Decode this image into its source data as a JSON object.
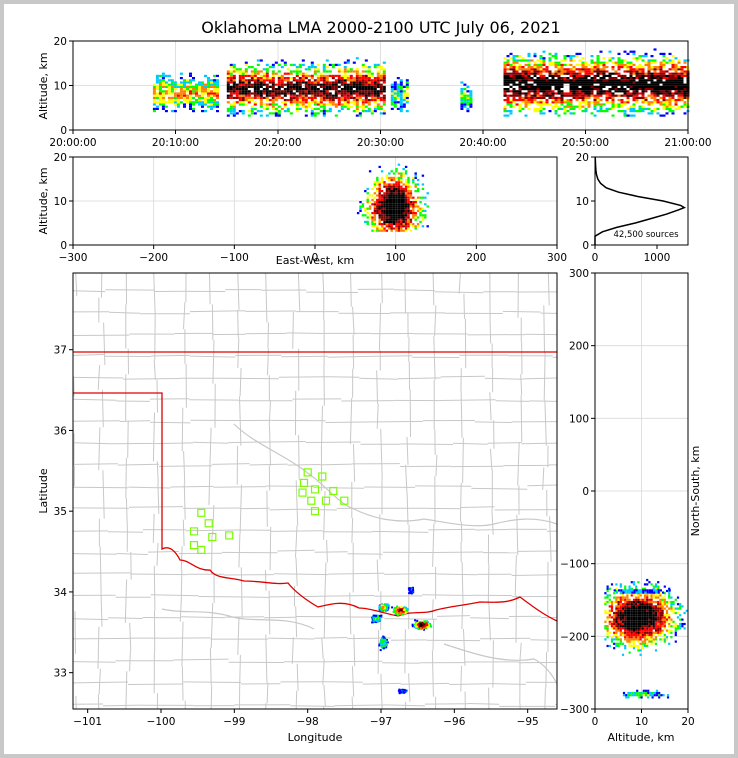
{
  "title": "Oklahoma LMA 2000-2100 UTC July 06, 2021",
  "colors": {
    "background": "#ffffff",
    "frame": "#c8c8c8",
    "grid": "#d9d9d9",
    "county": "#c8c8c8",
    "border": "#e00000",
    "station": "#7cfc00",
    "histogram": "#000000"
  },
  "density_palette": [
    "#0000ff",
    "#00c8ff",
    "#00ff00",
    "#ffff00",
    "#ff8000",
    "#ff0000",
    "#800000",
    "#000000"
  ],
  "chart_data": [
    {
      "id": "time-altitude",
      "type": "heatmap",
      "xlabel": "",
      "ylabel": "Altitude, km",
      "xticks": [
        "20:00:00",
        "20:10:00",
        "20:20:00",
        "20:30:00",
        "20:40:00",
        "20:50:00",
        "21:00:00"
      ],
      "xlim_minutes": [
        0,
        60
      ],
      "ylim": [
        0,
        20
      ],
      "yticks": [
        0,
        10,
        20
      ],
      "grid": true,
      "activity_windows_minutes": [
        {
          "start": 7.8,
          "end": 14.2,
          "alt_low": 4,
          "alt_high": 14,
          "intensity": 0.5
        },
        {
          "start": 15.0,
          "end": 30.5,
          "alt_low": 3,
          "alt_high": 17,
          "intensity": 0.9
        },
        {
          "start": 31.0,
          "end": 32.5,
          "alt_low": 4,
          "alt_high": 13,
          "intensity": 0.3
        },
        {
          "start": 37.8,
          "end": 38.8,
          "alt_low": 4,
          "alt_high": 12,
          "intensity": 0.3
        },
        {
          "start": 42.0,
          "end": 60.0,
          "alt_low": 3,
          "alt_high": 19,
          "intensity": 1.0
        }
      ]
    },
    {
      "id": "ew-altitude",
      "type": "heatmap",
      "xlabel": "East-West, km",
      "ylabel": "Altitude, km",
      "xticks": [
        -300,
        -200,
        -100,
        0,
        100,
        200,
        300
      ],
      "yticks": [
        0,
        10,
        20
      ],
      "xlim": [
        -300,
        300
      ],
      "ylim": [
        0,
        20
      ],
      "grid": true,
      "clusters": [
        {
          "x_center": 97,
          "x_spread": 20,
          "alt_low": 3,
          "alt_high": 20,
          "core_alt": 8.5,
          "intensity": 1.0
        }
      ]
    },
    {
      "id": "altitude-histogram",
      "type": "line",
      "annotation": "42,500 sources",
      "xticks": [
        0,
        1000
      ],
      "yticks": [
        0,
        10,
        20
      ],
      "xlim": [
        0,
        1500
      ],
      "ylim": [
        0,
        20
      ],
      "profile": {
        "altitude": [
          0,
          2,
          3,
          4,
          5,
          6,
          7,
          8,
          8.5,
          9,
          10,
          11,
          12,
          13,
          14,
          15,
          16,
          17,
          18,
          19,
          20
        ],
        "count": [
          0,
          0,
          120,
          350,
          650,
          900,
          1150,
          1350,
          1440,
          1380,
          1100,
          700,
          380,
          180,
          90,
          45,
          25,
          15,
          10,
          6,
          3
        ]
      }
    },
    {
      "id": "plan-view-map",
      "type": "scatter",
      "xlabel": "Longitude",
      "ylabel": "Latitude",
      "xticks": [
        -101,
        -100,
        -99,
        -98,
        -97,
        -96,
        -95
      ],
      "yticks": [
        33,
        34,
        35,
        36,
        37
      ],
      "xlim": [
        -101.2,
        -94.6
      ],
      "ylim": [
        32.55,
        37.95
      ],
      "grid": true,
      "stations": [
        [
          -99.45,
          34.98
        ],
        [
          -99.35,
          34.85
        ],
        [
          -99.55,
          34.75
        ],
        [
          -99.3,
          34.68
        ],
        [
          -99.55,
          34.58
        ],
        [
          -99.45,
          34.52
        ],
        [
          -99.07,
          34.7
        ],
        [
          -98.0,
          35.48
        ],
        [
          -98.05,
          35.35
        ],
        [
          -97.8,
          35.43
        ],
        [
          -97.9,
          35.27
        ],
        [
          -98.07,
          35.23
        ],
        [
          -97.65,
          35.25
        ],
        [
          -97.95,
          35.13
        ],
        [
          -97.75,
          35.13
        ],
        [
          -97.5,
          35.13
        ],
        [
          -97.9,
          35.0
        ]
      ],
      "source_clusters": [
        {
          "lon": -97.07,
          "lat": 33.68,
          "sx": 0.06,
          "sy": 0.04,
          "weight": 0.35
        },
        {
          "lon": -96.98,
          "lat": 33.38,
          "sx": 0.05,
          "sy": 0.07,
          "weight": 0.3
        },
        {
          "lon": -96.97,
          "lat": 33.82,
          "sx": 0.06,
          "sy": 0.04,
          "weight": 0.5
        },
        {
          "lon": -96.75,
          "lat": 33.78,
          "sx": 0.09,
          "sy": 0.05,
          "weight": 0.8
        },
        {
          "lon": -96.45,
          "lat": 33.6,
          "sx": 0.1,
          "sy": 0.05,
          "weight": 0.9
        },
        {
          "lon": -96.6,
          "lat": 34.03,
          "sx": 0.03,
          "sy": 0.03,
          "weight": 0.1
        },
        {
          "lon": -96.72,
          "lat": 32.78,
          "sx": 0.05,
          "sy": 0.02,
          "weight": 0.15
        }
      ]
    },
    {
      "id": "altitude-ns",
      "type": "heatmap",
      "xlabel": "Altitude, km",
      "ylabel": "North-South, km",
      "xticks": [
        0,
        10,
        20
      ],
      "yticks": [
        -300,
        -200,
        -100,
        0,
        100,
        200,
        300
      ],
      "xlim": [
        0,
        20
      ],
      "ylim": [
        -300,
        300
      ],
      "grid": true,
      "clusters": [
        {
          "ns_center": -175,
          "ns_spread": 25,
          "alt_low": 2,
          "alt_high": 20,
          "core_alt": 9,
          "intensity": 1.0
        },
        {
          "ns_center": -282,
          "ns_spread": 3,
          "alt_low": 6,
          "alt_high": 18,
          "core_alt": 10,
          "intensity": 0.25
        },
        {
          "ns_center": -140,
          "ns_spread": 2,
          "alt_low": 4,
          "alt_high": 17,
          "core_alt": 9,
          "intensity": 0.15
        }
      ]
    }
  ]
}
